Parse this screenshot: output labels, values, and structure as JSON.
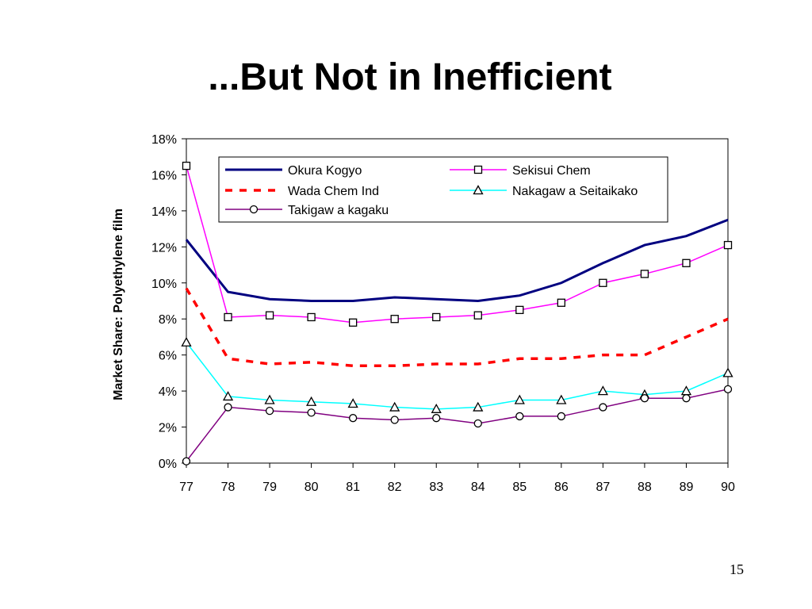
{
  "slide": {
    "title": "...But Not in Inefficient",
    "page_number": "15"
  },
  "chart_data": {
    "type": "line",
    "title": "",
    "xlabel": "",
    "ylabel": "Market Share: Polyethylene film",
    "x": [
      "77",
      "78",
      "79",
      "80",
      "81",
      "82",
      "83",
      "84",
      "85",
      "86",
      "87",
      "88",
      "89",
      "90"
    ],
    "ylim": [
      0,
      18
    ],
    "yticks": [
      0,
      2,
      4,
      6,
      8,
      10,
      12,
      14,
      16,
      18
    ],
    "y_unit_suffix": "%",
    "grid": false,
    "legend_position": "top",
    "series": [
      {
        "name": "Okura Kogyo",
        "color": "#000080",
        "line": "solid-thick",
        "marker": "none",
        "values": [
          12.4,
          9.5,
          9.1,
          9.0,
          9.0,
          9.2,
          9.1,
          9.0,
          9.3,
          10.0,
          11.1,
          12.1,
          12.6,
          13.5
        ]
      },
      {
        "name": "Sekisui Chem",
        "color": "#ff00ff",
        "line": "solid",
        "marker": "square",
        "values": [
          16.5,
          8.1,
          8.2,
          8.1,
          7.8,
          8.0,
          8.1,
          8.2,
          8.5,
          8.9,
          10.0,
          10.5,
          11.1,
          12.1
        ]
      },
      {
        "name": "Wada Chem Ind",
        "color": "#ff0000",
        "line": "dashed",
        "marker": "none",
        "values": [
          9.7,
          5.8,
          5.5,
          5.6,
          5.4,
          5.4,
          5.5,
          5.5,
          5.8,
          5.8,
          6.0,
          6.0,
          7.0,
          8.0
        ]
      },
      {
        "name": "Nakagaw a Seitaikako",
        "color": "#00ffff",
        "line": "solid",
        "marker": "triangle",
        "values": [
          6.7,
          3.7,
          3.5,
          3.4,
          3.3,
          3.1,
          3.0,
          3.1,
          3.5,
          3.5,
          4.0,
          3.8,
          4.0,
          5.0
        ]
      },
      {
        "name": "Takigaw a kagaku",
        "color": "#800080",
        "line": "solid",
        "marker": "circle",
        "values": [
          0.1,
          3.1,
          2.9,
          2.8,
          2.5,
          2.4,
          2.5,
          2.2,
          2.6,
          2.6,
          3.1,
          3.6,
          3.6,
          4.1
        ]
      }
    ]
  }
}
